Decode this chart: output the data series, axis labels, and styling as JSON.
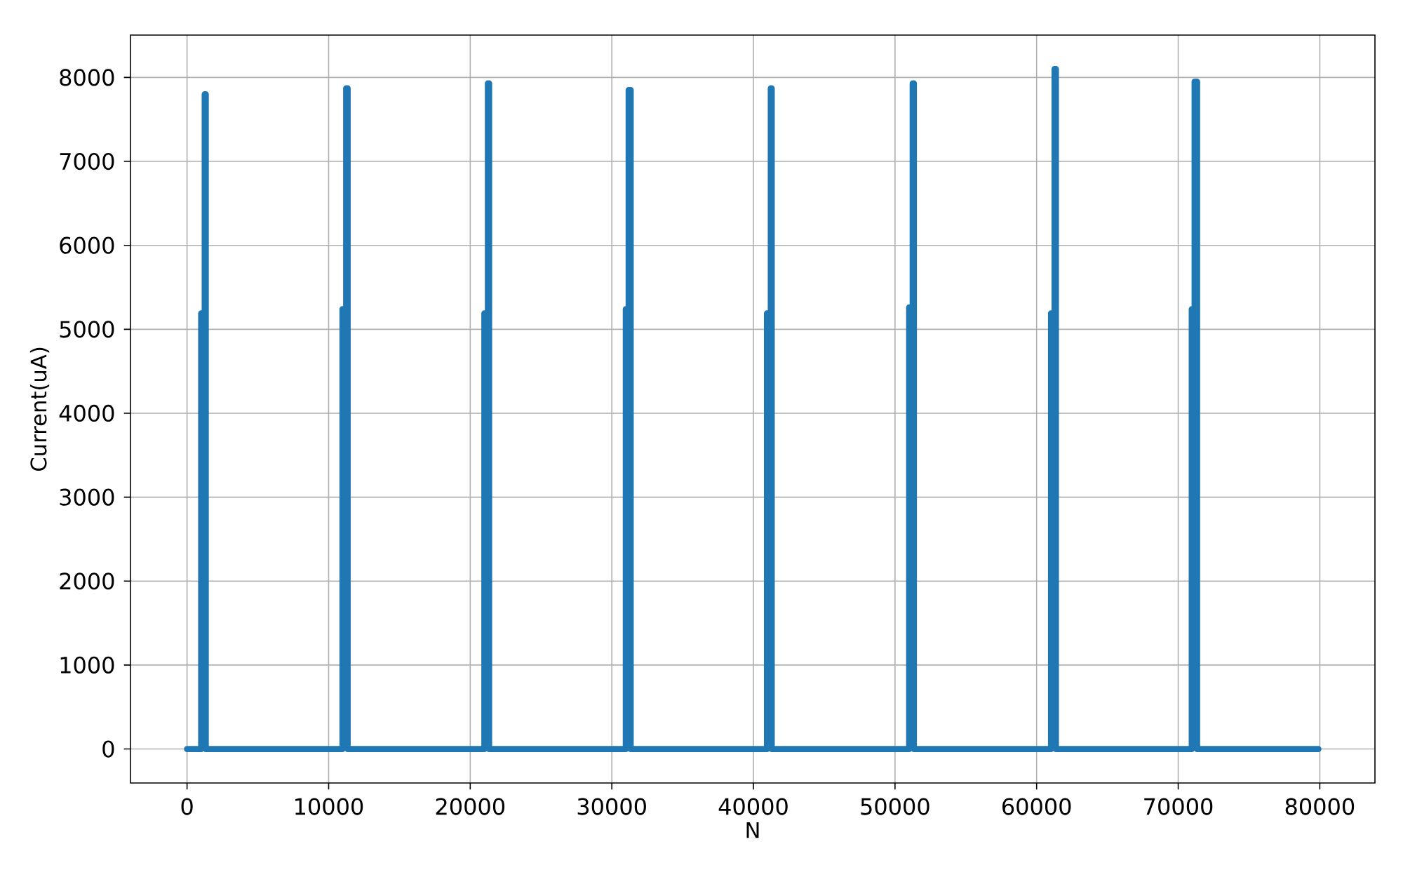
{
  "chart_data": {
    "type": "line",
    "xlabel": "N",
    "ylabel": "Current(uA)",
    "x": [
      0,
      1000,
      1000,
      1250,
      1250,
      1320,
      1320,
      10980,
      10980,
      11240,
      11240,
      11340,
      11340,
      21000,
      21000,
      21250,
      21250,
      21330,
      21330,
      30990,
      30990,
      31190,
      31190,
      31330,
      31330,
      40960,
      40960,
      41230,
      41230,
      41290,
      41290,
      51000,
      51000,
      51250,
      51250,
      51330,
      51330,
      61020,
      61020,
      61270,
      61270,
      61360,
      61360,
      70960,
      70960,
      71160,
      71160,
      71330,
      71330,
      79900
    ],
    "series": [
      {
        "color": "#1f77b4",
        "values": [
          0,
          0,
          5190,
          5190,
          7800,
          7800,
          0,
          0,
          5240,
          5240,
          7870,
          7870,
          0,
          0,
          5190,
          5190,
          7930,
          7930,
          0,
          0,
          5240,
          5240,
          7850,
          7850,
          0,
          0,
          5190,
          5190,
          7870,
          7870,
          0,
          0,
          5260,
          5260,
          7930,
          7930,
          0,
          0,
          5190,
          5190,
          8100,
          8100,
          0,
          0,
          5240,
          5240,
          7950,
          7950,
          0,
          0
        ]
      }
    ],
    "xlim": [
      -3995,
      83895
    ],
    "ylim": [
      -405,
      8505
    ],
    "xticks": [
      0,
      10000,
      20000,
      30000,
      40000,
      50000,
      60000,
      70000,
      80000
    ],
    "yticks": [
      0,
      1000,
      2000,
      3000,
      4000,
      5000,
      6000,
      7000,
      8000
    ],
    "grid": true,
    "marker": "none",
    "line_style": "solid"
  }
}
